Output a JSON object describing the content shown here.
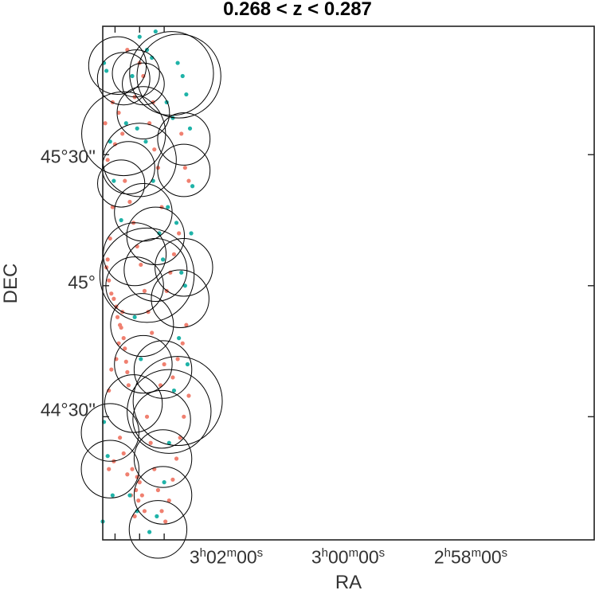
{
  "chart_data": {
    "type": "scatter",
    "title": "0.268 < z < 0.287",
    "xlabel": "RA",
    "ylabel": "DEC",
    "x_direction": "decreasing to the right",
    "xlim_min": [
      183,
      143
    ],
    "ylim_deg": [
      44.03,
      45.99
    ],
    "xticks": [
      {
        "h": "3",
        "m": "02",
        "s": "00",
        "value_min": 182
      },
      {
        "h": "3",
        "m": "00",
        "s": "00",
        "value_min": 180
      },
      {
        "h": "2",
        "m": "58",
        "s": "00",
        "value_min": 178
      }
    ],
    "yticks": [
      {
        "label": "44°30''",
        "value_deg": 44.5
      },
      {
        "label": "45°",
        "value_deg": 45.0
      },
      {
        "label": "45°30''",
        "value_deg": 45.5
      }
    ],
    "colors": {
      "members": "#f08070",
      "other": "#1fb3a8",
      "circles": "#000000"
    },
    "series": [
      {
        "class": "red",
        "points": [
          [
            182.0,
            45.54
          ],
          [
            182.2,
            45.3
          ],
          [
            182.4,
            45.18
          ],
          [
            182.6,
            45.1
          ],
          [
            182.7,
            45.07
          ],
          [
            182.5,
            45.02
          ],
          [
            182.3,
            44.97
          ],
          [
            182.1,
            44.95
          ],
          [
            181.9,
            44.92
          ],
          [
            181.8,
            44.88
          ],
          [
            181.6,
            44.85
          ],
          [
            181.3,
            44.8
          ],
          [
            181.2,
            44.76
          ],
          [
            181.1,
            44.71
          ],
          [
            181.0,
            44.67
          ],
          [
            180.9,
            44.62
          ],
          [
            181.4,
            44.9
          ],
          [
            181.5,
            44.84
          ],
          [
            181.7,
            44.78
          ],
          [
            181.9,
            44.72
          ],
          [
            182.3,
            44.68
          ],
          [
            182.5,
            44.6
          ],
          [
            182.8,
            45.62
          ],
          [
            182.6,
            45.48
          ],
          [
            182.2,
            45.7
          ],
          [
            181.7,
            45.66
          ],
          [
            181.4,
            45.58
          ],
          [
            181.2,
            45.4
          ],
          [
            180.8,
            45.32
          ],
          [
            180.5,
            45.24
          ],
          [
            180.2,
            45.15
          ],
          [
            179.9,
            45.08
          ],
          [
            179.6,
            44.98
          ],
          [
            179.3,
            44.9
          ],
          [
            179.0,
            44.82
          ],
          [
            180.6,
            44.3
          ],
          [
            180.3,
            44.22
          ],
          [
            180.1,
            44.18
          ],
          [
            180.0,
            44.25
          ],
          [
            180.2,
            44.27
          ],
          [
            179.8,
            44.2
          ],
          [
            179.6,
            44.14
          ],
          [
            180.4,
            44.12
          ],
          [
            180.7,
            44.2
          ],
          [
            181.0,
            44.28
          ],
          [
            181.3,
            44.36
          ],
          [
            181.6,
            44.42
          ],
          [
            182.1,
            44.33
          ],
          [
            182.5,
            44.3
          ],
          [
            179.4,
            44.5
          ],
          [
            179.1,
            44.4
          ],
          [
            178.8,
            44.3
          ],
          [
            178.5,
            44.22
          ],
          [
            178.2,
            44.14
          ],
          [
            177.9,
            44.1
          ],
          [
            177.6,
            44.18
          ],
          [
            177.3,
            44.26
          ],
          [
            177.0,
            44.34
          ],
          [
            176.7,
            44.42
          ],
          [
            176.4,
            44.5
          ],
          [
            176.0,
            44.58
          ],
          [
            178.9,
            45.7
          ],
          [
            179.2,
            45.62
          ],
          [
            179.7,
            45.8
          ],
          [
            180.0,
            45.85
          ],
          [
            180.4,
            45.72
          ],
          [
            181.0,
            45.9
          ],
          [
            176.6,
            45.58
          ],
          [
            176.3,
            45.45
          ],
          [
            176.0,
            45.4
          ],
          [
            176.8,
            45.2
          ],
          [
            177.2,
            45.12
          ],
          [
            177.5,
            45.05
          ],
          [
            177.8,
            44.98
          ],
          [
            178.2,
            45.3
          ],
          [
            178.5,
            45.45
          ],
          [
            178.8,
            45.52
          ],
          [
            176.2,
            44.85
          ],
          [
            176.5,
            44.78
          ],
          [
            176.9,
            44.72
          ],
          [
            177.3,
            44.65
          ],
          [
            178.0,
            44.7
          ],
          [
            178.3,
            44.62
          ]
        ]
      },
      {
        "class": "teal",
        "points": [
          [
            182.9,
            45.85
          ],
          [
            182.7,
            45.82
          ],
          [
            182.4,
            45.55
          ],
          [
            182.1,
            45.4
          ],
          [
            181.5,
            45.25
          ],
          [
            181.1,
            45.62
          ],
          [
            180.6,
            45.8
          ],
          [
            180.0,
            45.95
          ],
          [
            179.4,
            45.9
          ],
          [
            179.0,
            45.87
          ],
          [
            178.7,
            45.97
          ],
          [
            177.8,
            45.7
          ],
          [
            177.3,
            45.64
          ],
          [
            176.9,
            45.85
          ],
          [
            176.5,
            45.8
          ],
          [
            176.2,
            45.73
          ],
          [
            175.9,
            45.6
          ],
          [
            175.7,
            45.38
          ],
          [
            175.8,
            45.2
          ],
          [
            176.3,
            45.0
          ],
          [
            176.8,
            44.8
          ],
          [
            177.2,
            44.6
          ],
          [
            177.6,
            44.4
          ],
          [
            178.0,
            44.25
          ],
          [
            178.6,
            44.12
          ],
          [
            179.2,
            44.06
          ],
          [
            180.2,
            44.14
          ],
          [
            180.8,
            44.2
          ],
          [
            182.2,
            44.2
          ],
          [
            182.6,
            44.35
          ],
          [
            182.9,
            44.48
          ],
          [
            183.0,
            44.1
          ],
          [
            179.9,
            44.72
          ],
          [
            180.4,
            44.88
          ],
          [
            180.2,
            45.6
          ],
          [
            179.5,
            45.55
          ],
          [
            178.9,
            45.4
          ],
          [
            178.4,
            45.2
          ],
          [
            178.1,
            45.1
          ],
          [
            177.7,
            45.3
          ],
          [
            177.0,
            45.24
          ],
          [
            176.6,
            45.05
          ],
          [
            176.1,
            44.7
          ]
        ]
      }
    ],
    "circles": [
      [
        181.8,
        45.84,
        0.11
      ],
      [
        181.3,
        45.79,
        0.1
      ],
      [
        181.3,
        45.58,
        0.16
      ],
      [
        181.5,
        45.39,
        0.09
      ],
      [
        180.9,
        45.45,
        0.1
      ],
      [
        180.3,
        45.81,
        0.09
      ],
      [
        179.7,
        45.77,
        0.08
      ],
      [
        179.7,
        45.66,
        0.1
      ],
      [
        180.0,
        45.48,
        0.14
      ],
      [
        179.7,
        45.28,
        0.11
      ],
      [
        180.4,
        45.12,
        0.12
      ],
      [
        180.4,
        45.0,
        0.11
      ],
      [
        179.4,
        45.04,
        0.18
      ],
      [
        179.8,
        44.85,
        0.12
      ],
      [
        178.7,
        45.19,
        0.11
      ],
      [
        178.7,
        45.06,
        0.12
      ],
      [
        177.4,
        45.81,
        0.16
      ],
      [
        176.8,
        45.8,
        0.16
      ],
      [
        176.4,
        45.56,
        0.1
      ],
      [
        176.4,
        45.44,
        0.1
      ],
      [
        176.4,
        45.07,
        0.11
      ],
      [
        176.7,
        44.95,
        0.11
      ],
      [
        178.1,
        44.68,
        0.11
      ],
      [
        177.6,
        44.52,
        0.16
      ],
      [
        176.9,
        44.56,
        0.17
      ],
      [
        178.2,
        44.49,
        0.11
      ],
      [
        178.1,
        44.34,
        0.11
      ],
      [
        178.1,
        44.2,
        0.11
      ],
      [
        178.5,
        44.07,
        0.11
      ],
      [
        182.4,
        44.44,
        0.11
      ],
      [
        182.4,
        44.3,
        0.11
      ],
      [
        180.5,
        44.55,
        0.11
      ],
      [
        179.7,
        44.7,
        0.11
      ]
    ]
  }
}
